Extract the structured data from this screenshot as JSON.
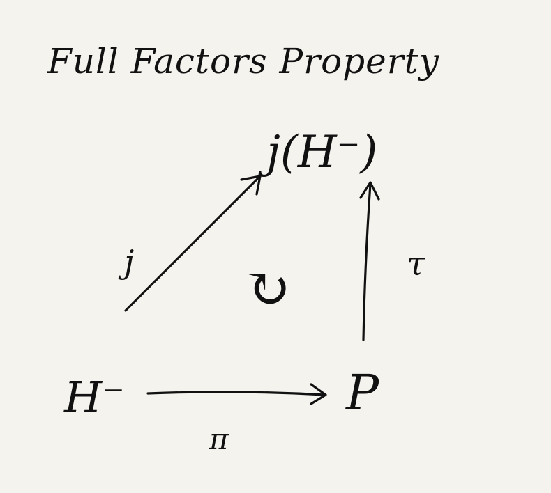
{
  "title": "Full Factors Property",
  "nodes": {
    "top": "j(H⁻)",
    "bottom_left": "H⁻",
    "bottom_right": "P"
  },
  "arrows": {
    "diagonal": "j",
    "horizontal": "π",
    "vertical": "τ"
  },
  "commutes_symbol": "↻",
  "ink_color": "#111111",
  "paper_color": "#f5f3ee"
}
